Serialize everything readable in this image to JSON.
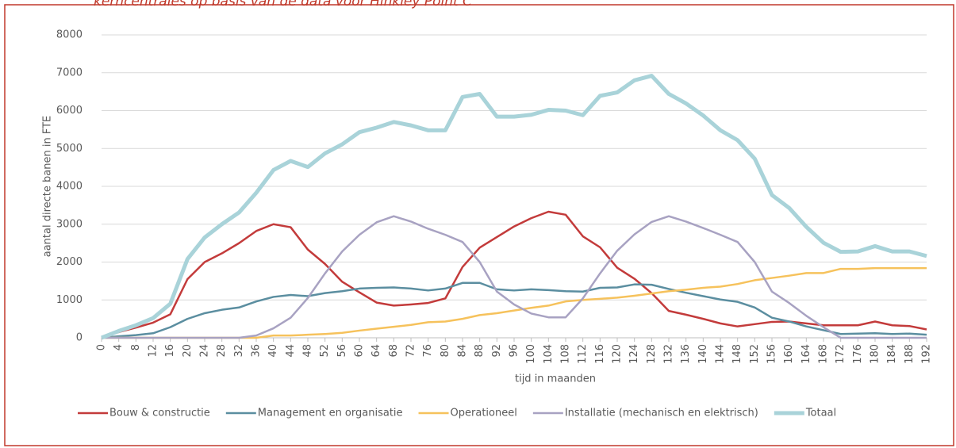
{
  "chart_data": {
    "type": "line",
    "title": "kerncentrales op basis van de data voor Hinkley Point C",
    "x_label": "tijd in maanden",
    "y_label": "aantal directe banen in FTE",
    "x": [
      0,
      4,
      8,
      12,
      16,
      20,
      24,
      28,
      32,
      36,
      40,
      44,
      48,
      52,
      56,
      60,
      64,
      68,
      72,
      76,
      80,
      84,
      88,
      92,
      96,
      100,
      104,
      108,
      112,
      116,
      120,
      124,
      128,
      132,
      136,
      140,
      144,
      148,
      152,
      156,
      160,
      164,
      168,
      172,
      176,
      180,
      184,
      188,
      192
    ],
    "xlim": [
      0,
      192
    ],
    "xticks": [
      0,
      4,
      8,
      12,
      16,
      20,
      24,
      28,
      32,
      36,
      40,
      44,
      48,
      52,
      56,
      60,
      64,
      68,
      72,
      76,
      80,
      84,
      88,
      92,
      96,
      100,
      104,
      108,
      112,
      116,
      120,
      124,
      128,
      132,
      136,
      140,
      144,
      148,
      152,
      156,
      160,
      164,
      168,
      172,
      176,
      180,
      184,
      188,
      192
    ],
    "ylim": [
      0,
      8000
    ],
    "yticks": [
      0,
      1000,
      2000,
      3000,
      4000,
      5000,
      6000,
      7000,
      8000
    ],
    "grid": true,
    "legend": "bottom",
    "series": [
      {
        "name": "Bouw & constructie",
        "color": "#c33b3b",
        "width": 2.5,
        "values": [
          0,
          150,
          270,
          400,
          620,
          1550,
          2000,
          2230,
          2500,
          2820,
          3000,
          2920,
          2330,
          1950,
          1480,
          1200,
          930,
          850,
          880,
          920,
          1040,
          1870,
          2380,
          2660,
          2940,
          3160,
          3330,
          3250,
          2680,
          2390,
          1850,
          1560,
          1180,
          710,
          610,
          500,
          380,
          300,
          360,
          420,
          430,
          380,
          330,
          330,
          330,
          430,
          330,
          310,
          220
        ]
      },
      {
        "name": "Management en organisatie",
        "color": "#5b8ea0",
        "width": 2.5,
        "values": [
          0,
          40,
          70,
          120,
          280,
          500,
          650,
          740,
          800,
          960,
          1080,
          1130,
          1100,
          1180,
          1230,
          1300,
          1320,
          1330,
          1300,
          1250,
          1300,
          1450,
          1450,
          1280,
          1250,
          1280,
          1260,
          1230,
          1220,
          1320,
          1330,
          1410,
          1400,
          1290,
          1190,
          1100,
          1010,
          950,
          800,
          530,
          430,
          300,
          200,
          100,
          110,
          120,
          100,
          110,
          80
        ]
      },
      {
        "name": "Operationeel",
        "color": "#f6c25c",
        "width": 2.5,
        "values": [
          0,
          0,
          0,
          0,
          0,
          0,
          0,
          0,
          0,
          0,
          60,
          60,
          80,
          100,
          130,
          190,
          240,
          290,
          340,
          410,
          430,
          500,
          600,
          650,
          720,
          790,
          850,
          960,
          1000,
          1030,
          1060,
          1110,
          1170,
          1230,
          1270,
          1320,
          1350,
          1420,
          1520,
          1580,
          1640,
          1710,
          1710,
          1820,
          1820,
          1840,
          1840,
          1840,
          1840
        ]
      },
      {
        "name": "Installatie (mechanisch en elektrisch)",
        "color": "#a8a2c2",
        "width": 2.5,
        "values": [
          0,
          0,
          0,
          0,
          0,
          0,
          0,
          0,
          0,
          60,
          250,
          530,
          1050,
          1700,
          2280,
          2720,
          3050,
          3210,
          3070,
          2880,
          2720,
          2530,
          2000,
          1220,
          880,
          640,
          540,
          540,
          1040,
          1700,
          2300,
          2730,
          3060,
          3210,
          3070,
          2900,
          2720,
          2530,
          2000,
          1220,
          920,
          580,
          280,
          0,
          0,
          0,
          0,
          0,
          0
        ]
      },
      {
        "name": "Totaal",
        "color": "#a9d3d9",
        "width": 5,
        "values": [
          0,
          180,
          330,
          520,
          900,
          2080,
          2650,
          3000,
          3310,
          3830,
          4430,
          4670,
          4510,
          4870,
          5110,
          5430,
          5550,
          5700,
          5610,
          5480,
          5480,
          6360,
          6440,
          5840,
          5840,
          5890,
          6020,
          6000,
          5880,
          6390,
          6480,
          6800,
          6920,
          6440,
          6190,
          5870,
          5480,
          5220,
          4730,
          3770,
          3430,
          2930,
          2510,
          2270,
          2280,
          2420,
          2280,
          2280,
          2160
        ]
      }
    ]
  }
}
